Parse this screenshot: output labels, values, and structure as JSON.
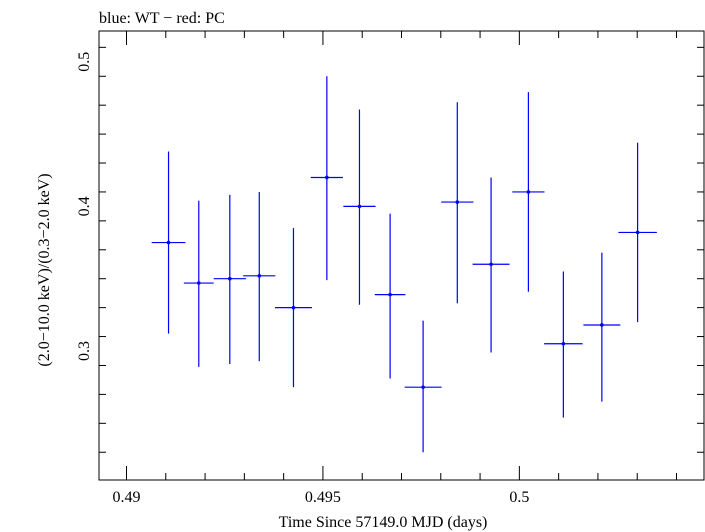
{
  "chart_data": {
    "type": "scatter",
    "title": "blue: WT − red: PC",
    "xlabel": "Time Since 57149.0 MJD (days)",
    "ylabel": "(2.0−10.0 keV)/(0.3−2.0 keV)",
    "xlim": [
      0.4893,
      0.5047
    ],
    "ylim": [
      0.2108,
      0.5213
    ],
    "x_ticks": [
      0.49,
      0.495,
      0.5
    ],
    "x_tick_labels": [
      "0.49",
      "0.495",
      "0.5"
    ],
    "y_ticks": [
      0.3,
      0.4,
      0.5
    ],
    "y_tick_labels": [
      "0.3",
      "0.4",
      "0.5"
    ],
    "grid": false,
    "series": [
      {
        "color": "#0000ff",
        "points": [
          {
            "x": 0.49107,
            "xerr": 0.00043,
            "y": 0.375,
            "ylo": 0.312,
            "yhi": 0.438
          },
          {
            "x": 0.49184,
            "xerr": 0.00038,
            "y": 0.347,
            "ylo": 0.289,
            "yhi": 0.404
          },
          {
            "x": 0.49263,
            "xerr": 0.00041,
            "y": 0.35,
            "ylo": 0.291,
            "yhi": 0.408
          },
          {
            "x": 0.49338,
            "xerr": 0.00041,
            "y": 0.352,
            "ylo": 0.293,
            "yhi": 0.41
          },
          {
            "x": 0.49425,
            "xerr": 0.00047,
            "y": 0.33,
            "ylo": 0.275,
            "yhi": 0.385
          },
          {
            "x": 0.4951,
            "xerr": 0.00041,
            "y": 0.42,
            "ylo": 0.349,
            "yhi": 0.49
          },
          {
            "x": 0.49593,
            "xerr": 0.00041,
            "y": 0.4,
            "ylo": 0.332,
            "yhi": 0.467
          },
          {
            "x": 0.49671,
            "xerr": 0.00039,
            "y": 0.339,
            "ylo": 0.281,
            "yhi": 0.395
          },
          {
            "x": 0.49755,
            "xerr": 0.00047,
            "y": 0.275,
            "ylo": 0.23,
            "yhi": 0.321
          },
          {
            "x": 0.49842,
            "xerr": 0.00041,
            "y": 0.403,
            "ylo": 0.333,
            "yhi": 0.472
          },
          {
            "x": 0.49928,
            "xerr": 0.00047,
            "y": 0.36,
            "ylo": 0.299,
            "yhi": 0.42
          },
          {
            "x": 0.50023,
            "xerr": 0.00041,
            "y": 0.41,
            "ylo": 0.341,
            "yhi": 0.479
          },
          {
            "x": 0.50112,
            "xerr": 0.00049,
            "y": 0.305,
            "ylo": 0.254,
            "yhi": 0.355
          },
          {
            "x": 0.5021,
            "xerr": 0.00047,
            "y": 0.318,
            "ylo": 0.265,
            "yhi": 0.368
          },
          {
            "x": 0.50301,
            "xerr": 0.00049,
            "y": 0.382,
            "ylo": 0.32,
            "yhi": 0.444
          }
        ]
      }
    ]
  }
}
